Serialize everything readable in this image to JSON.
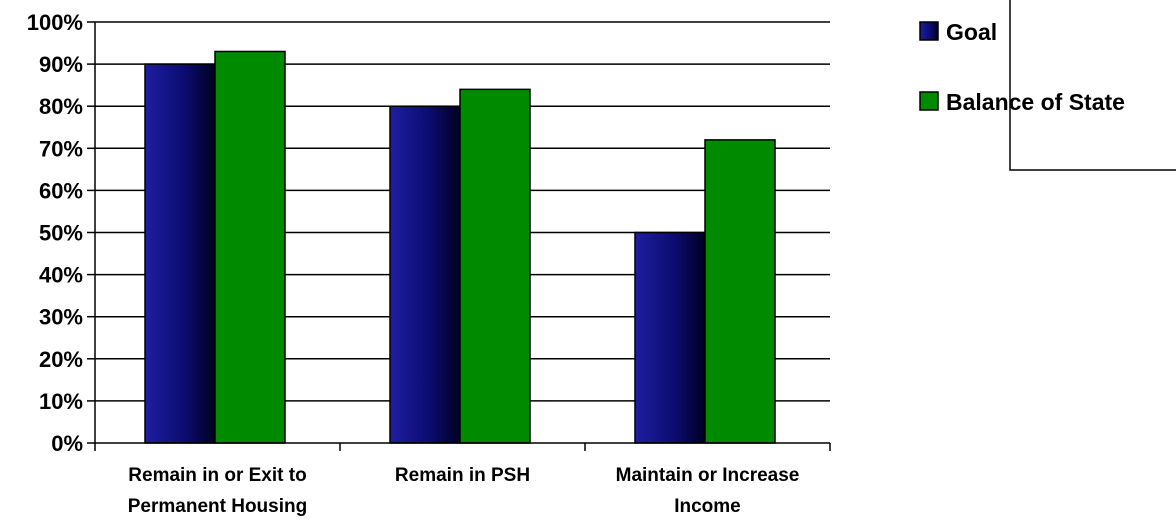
{
  "chart_data": {
    "type": "bar",
    "categories": [
      [
        "Remain in or Exit to",
        "Permanent Housing"
      ],
      [
        "Remain in PSH"
      ],
      [
        "Maintain or Increase",
        "Income"
      ]
    ],
    "series": [
      {
        "name": "Goal",
        "values": [
          90,
          80,
          50
        ],
        "color": "#0a0a6e"
      },
      {
        "name": "Balance of State",
        "values": [
          93,
          84,
          72
        ],
        "color": "#008a00"
      }
    ],
    "y_ticks": [
      "0%",
      "10%",
      "20%",
      "30%",
      "40%",
      "50%",
      "60%",
      "70%",
      "80%",
      "90%",
      "100%"
    ],
    "ylim": [
      0,
      100
    ],
    "grid": true,
    "legend": "top-right",
    "title": "",
    "xlabel": "",
    "ylabel": ""
  }
}
